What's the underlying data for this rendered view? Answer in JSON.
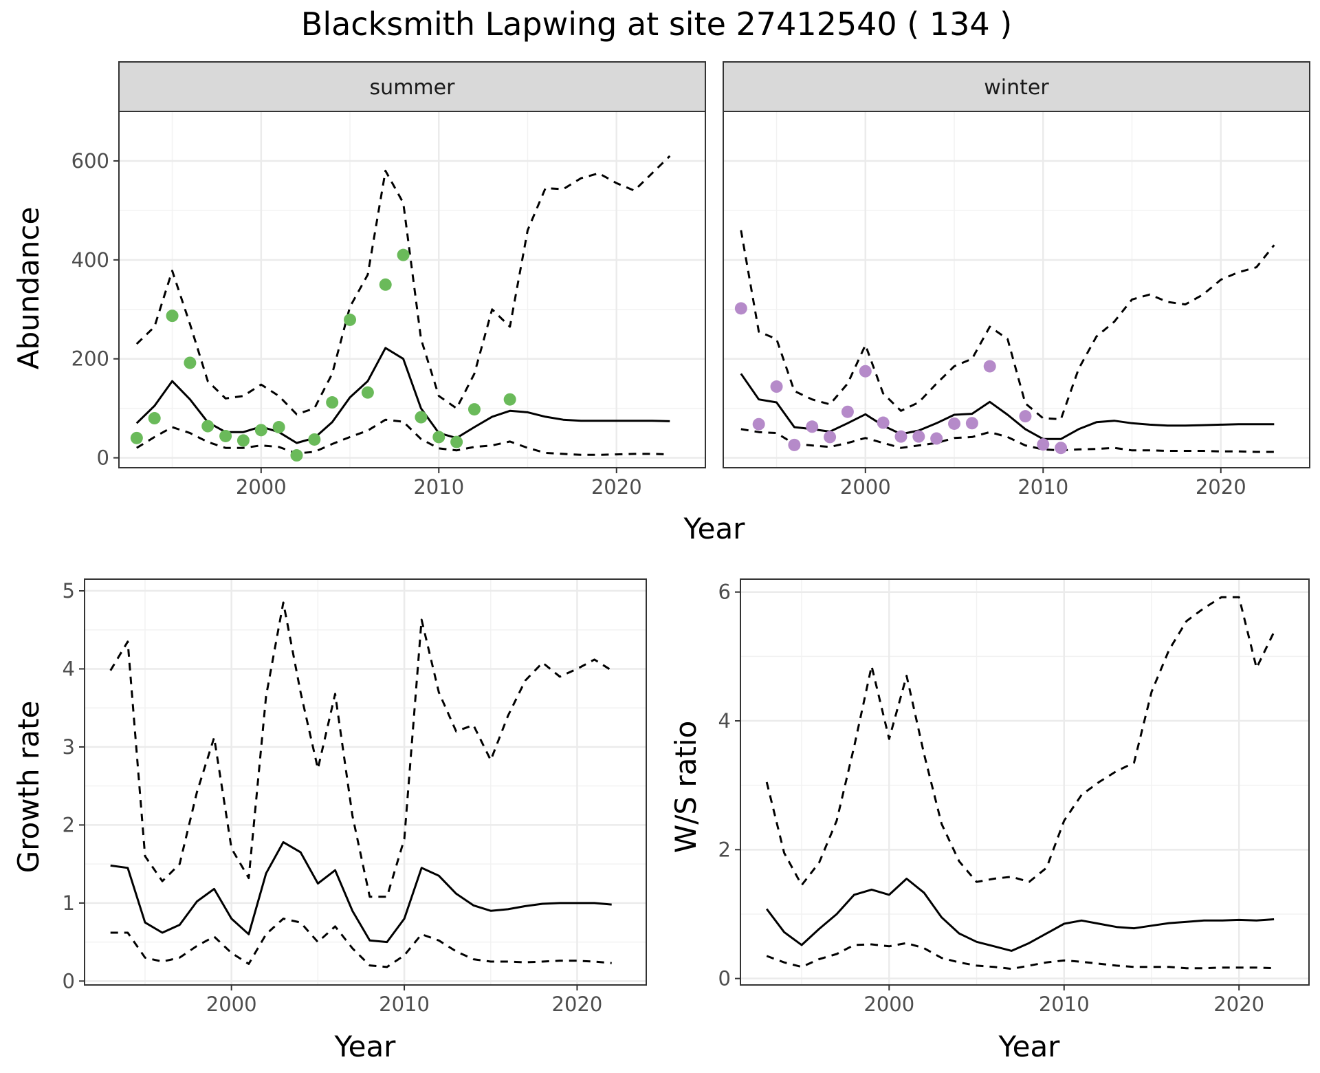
{
  "title": "Blacksmith Lapwing at site 27412540 ( 134 )",
  "colors": {
    "summer": "#6aba5a",
    "winter": "#b58ac9",
    "line": "#000000"
  },
  "panels": {
    "summer": {
      "strip": "summer",
      "xlabel": "Year",
      "ylabel": "Abundance",
      "xlim": [
        1992,
        2025
      ],
      "ylim": [
        -20,
        700
      ],
      "xticks": [
        2000,
        2010,
        2020
      ],
      "yticks": [
        0,
        200,
        400,
        600
      ],
      "chart_data": {
        "type": "line",
        "x": [
          1993,
          1994,
          1995,
          1996,
          1997,
          1998,
          1999,
          2000,
          2001,
          2002,
          2003,
          2004,
          2005,
          2006,
          2007,
          2008,
          2009,
          2010,
          2011,
          2012,
          2013,
          2014,
          2015,
          2016,
          2017,
          2018,
          2019,
          2020,
          2021,
          2022,
          2023
        ],
        "series": [
          {
            "values": [
              70,
              105,
              155,
              118,
              72,
              52,
              52,
              63,
              52,
              30,
              40,
              72,
              122,
              155,
              222,
              200,
              100,
              50,
              40,
              62,
              83,
              95,
              92,
              83,
              77,
              75,
              75,
              75,
              75,
              75,
              74
            ]
          },
          {
            "values": [
              230,
              265,
              378,
              270,
              155,
              120,
              125,
              148,
              125,
              88,
              100,
              170,
              305,
              370,
              580,
              515,
              240,
              125,
              100,
              170,
              300,
              265,
              460,
              545,
              543,
              565,
              575,
              555,
              540,
              575,
              610
            ]
          },
          {
            "values": [
              20,
              42,
              62,
              50,
              32,
              20,
              20,
              25,
              22,
              9,
              12,
              28,
              42,
              55,
              77,
              73,
              38,
              19,
              15,
              22,
              25,
              33,
              20,
              10,
              8,
              6,
              6,
              7,
              8,
              8,
              7
            ]
          }
        ],
        "points": {
          "x": [
            1993,
            1994,
            1995,
            1996,
            1997,
            1998,
            1999,
            2000,
            2001,
            2002,
            2003,
            2004,
            2005,
            2006,
            2007,
            2008,
            2009,
            2010,
            2011,
            2012,
            2014
          ],
          "y": [
            40,
            80,
            287,
            192,
            64,
            44,
            35,
            56,
            62,
            5,
            37,
            112,
            279,
            132,
            350,
            410,
            82,
            42,
            32,
            98,
            118
          ]
        }
      }
    },
    "winter": {
      "strip": "winter",
      "xlim": [
        1992,
        2025
      ],
      "ylim": [
        -20,
        700
      ],
      "xticks": [
        2000,
        2010,
        2020
      ],
      "chart_data": {
        "type": "line",
        "x": [
          1993,
          1994,
          1995,
          1996,
          1997,
          1998,
          1999,
          2000,
          2001,
          2002,
          2003,
          2004,
          2005,
          2006,
          2007,
          2008,
          2009,
          2010,
          2011,
          2012,
          2013,
          2014,
          2015,
          2016,
          2017,
          2018,
          2019,
          2020,
          2021,
          2022,
          2023
        ],
        "series": [
          {
            "values": [
              170,
              118,
              112,
              62,
              58,
              53,
              70,
              88,
              65,
              48,
              55,
              70,
              87,
              89,
              113,
              87,
              58,
              38,
              38,
              58,
              72,
              75,
              70,
              67,
              65,
              65,
              66,
              67,
              68,
              68,
              68
            ]
          },
          {
            "values": [
              460,
              255,
              240,
              135,
              118,
              108,
              150,
              228,
              130,
              95,
              112,
              150,
              185,
              200,
              265,
              240,
              110,
              80,
              78,
              180,
              245,
              275,
              320,
              330,
              315,
              310,
              330,
              360,
              375,
              385,
              430
            ]
          },
          {
            "values": [
              58,
              52,
              50,
              28,
              25,
              22,
              30,
              40,
              30,
              20,
              25,
              30,
              40,
              42,
              52,
              42,
              25,
              17,
              15,
              17,
              18,
              20,
              15,
              15,
              14,
              14,
              14,
              13,
              13,
              12,
              12
            ]
          }
        ],
        "points": {
          "x": [
            1993,
            1994,
            1995,
            1996,
            1997,
            1998,
            1999,
            2000,
            2001,
            2002,
            2003,
            2004,
            2005,
            2006,
            2007,
            2009,
            2010,
            2011
          ],
          "y": [
            302,
            68,
            144,
            26,
            63,
            42,
            93,
            175,
            71,
            43,
            43,
            39,
            69,
            70,
            185,
            84,
            27,
            20
          ]
        }
      }
    },
    "abundance_xlabel": "Year",
    "growth": {
      "xlabel": "Year",
      "ylabel": "Growth rate",
      "xlim": [
        1991.5,
        2024
      ],
      "ylim": [
        -0.05,
        5.15
      ],
      "xticks": [
        2000,
        2010,
        2020
      ],
      "yticks": [
        0,
        1,
        2,
        3,
        4,
        5
      ],
      "chart_data": {
        "type": "line",
        "x": [
          1993,
          1994,
          1995,
          1996,
          1997,
          1998,
          1999,
          2000,
          2001,
          2002,
          2003,
          2004,
          2005,
          2006,
          2007,
          2008,
          2009,
          2010,
          2011,
          2012,
          2013,
          2014,
          2015,
          2016,
          2017,
          2018,
          2019,
          2020,
          2021,
          2022
        ],
        "series": [
          {
            "values": [
              1.48,
              1.45,
              0.75,
              0.62,
              0.72,
              1.02,
              1.18,
              0.8,
              0.6,
              1.38,
              1.78,
              1.65,
              1.25,
              1.42,
              0.9,
              0.52,
              0.5,
              0.8,
              1.45,
              1.35,
              1.12,
              0.97,
              0.9,
              0.92,
              0.96,
              0.99,
              1.0,
              1.0,
              1.0,
              0.98
            ]
          },
          {
            "values": [
              3.98,
              4.35,
              1.6,
              1.28,
              1.5,
              2.42,
              3.12,
              1.7,
              1.32,
              3.65,
              4.85,
              3.7,
              2.72,
              3.68,
              2.12,
              1.08,
              1.08,
              1.82,
              4.63,
              3.7,
              3.2,
              3.28,
              2.83,
              3.4,
              3.85,
              4.08,
              3.9,
              4.0,
              4.12,
              3.98
            ]
          },
          {
            "values": [
              0.62,
              0.62,
              0.3,
              0.25,
              0.3,
              0.45,
              0.57,
              0.36,
              0.22,
              0.6,
              0.8,
              0.75,
              0.5,
              0.7,
              0.42,
              0.2,
              0.18,
              0.33,
              0.6,
              0.52,
              0.38,
              0.28,
              0.25,
              0.25,
              0.24,
              0.25,
              0.26,
              0.26,
              0.25,
              0.23
            ]
          }
        ]
      }
    },
    "ratio": {
      "xlabel": "Year",
      "ylabel": "W/S ratio",
      "xlim": [
        1991.5,
        2024
      ],
      "ylim": [
        -0.1,
        6.2
      ],
      "xticks": [
        2000,
        2010,
        2020
      ],
      "yticks": [
        0,
        2,
        4,
        6
      ],
      "chart_data": {
        "type": "line",
        "x": [
          1993,
          1994,
          1995,
          1996,
          1997,
          1998,
          1999,
          2000,
          2001,
          2002,
          2003,
          2004,
          2005,
          2006,
          2007,
          2008,
          2009,
          2010,
          2011,
          2012,
          2013,
          2014,
          2015,
          2016,
          2017,
          2018,
          2019,
          2020,
          2021,
          2022
        ],
        "series": [
          {
            "values": [
              1.08,
              0.72,
              0.52,
              0.77,
              1.0,
              1.3,
              1.38,
              1.3,
              1.55,
              1.33,
              0.95,
              0.7,
              0.57,
              0.5,
              0.43,
              0.55,
              0.7,
              0.85,
              0.9,
              0.85,
              0.8,
              0.78,
              0.82,
              0.86,
              0.88,
              0.9,
              0.9,
              0.91,
              0.9,
              0.92
            ]
          },
          {
            "values": [
              3.05,
              1.95,
              1.45,
              1.8,
              2.45,
              3.6,
              4.85,
              3.72,
              4.7,
              3.48,
              2.4,
              1.82,
              1.5,
              1.55,
              1.58,
              1.5,
              1.72,
              2.45,
              2.85,
              3.05,
              3.22,
              3.35,
              4.45,
              5.1,
              5.55,
              5.75,
              5.92,
              5.92,
              4.82,
              5.38
            ]
          },
          {
            "values": [
              0.35,
              0.25,
              0.18,
              0.3,
              0.38,
              0.52,
              0.53,
              0.5,
              0.55,
              0.47,
              0.32,
              0.25,
              0.2,
              0.18,
              0.15,
              0.2,
              0.25,
              0.28,
              0.26,
              0.23,
              0.2,
              0.18,
              0.18,
              0.18,
              0.16,
              0.16,
              0.17,
              0.17,
              0.17,
              0.16
            ]
          }
        ]
      }
    }
  }
}
